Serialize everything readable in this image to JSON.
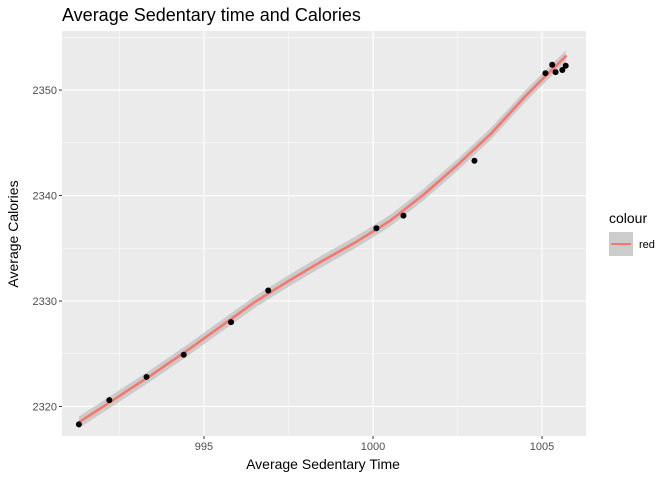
{
  "chart_data": {
    "type": "scatter",
    "title": "Average Sedentary time and Calories",
    "xlabel": "Average Sedentary Time",
    "ylabel": "Average Calories",
    "xlim": [
      990.8,
      1006.3
    ],
    "ylim": [
      2317.2,
      2355.6
    ],
    "xticks": [
      995,
      1000,
      1005
    ],
    "yticks": [
      2320,
      2330,
      2340,
      2350
    ],
    "grid": true,
    "points": [
      {
        "x": 991.3,
        "y": 2318.3
      },
      {
        "x": 992.2,
        "y": 2320.6
      },
      {
        "x": 993.3,
        "y": 2322.8
      },
      {
        "x": 994.4,
        "y": 2324.9
      },
      {
        "x": 995.8,
        "y": 2328.0
      },
      {
        "x": 996.9,
        "y": 2331.0
      },
      {
        "x": 1000.1,
        "y": 2336.9
      },
      {
        "x": 1000.9,
        "y": 2338.1
      },
      {
        "x": 1003.0,
        "y": 2343.3
      },
      {
        "x": 1005.1,
        "y": 2351.6
      },
      {
        "x": 1005.3,
        "y": 2352.4
      },
      {
        "x": 1005.4,
        "y": 2351.7
      },
      {
        "x": 1005.6,
        "y": 2351.9
      },
      {
        "x": 1005.7,
        "y": 2352.3
      }
    ],
    "smooth_line": {
      "x": [
        991.3,
        992.5,
        993.5,
        994.5,
        995.5,
        996.5,
        997.5,
        998.5,
        999.5,
        1000.5,
        1001.5,
        1002.5,
        1003.5,
        1004.5,
        1005.0,
        1005.7
      ],
      "y": [
        2318.5,
        2321.0,
        2323.1,
        2325.3,
        2327.6,
        2329.9,
        2331.9,
        2333.8,
        2335.6,
        2337.6,
        2340.1,
        2342.9,
        2345.9,
        2349.4,
        2351.0,
        2353.2
      ],
      "color": "#F8766D",
      "band_color": "#c6c6c6"
    },
    "legend": {
      "title": "colour",
      "entries": [
        {
          "label": "red",
          "color": "#F8766D"
        }
      ],
      "position": "right"
    }
  },
  "style": {
    "panel_bg": "#ebebeb",
    "grid_major": "#ffffff",
    "point_color": "#000000"
  }
}
